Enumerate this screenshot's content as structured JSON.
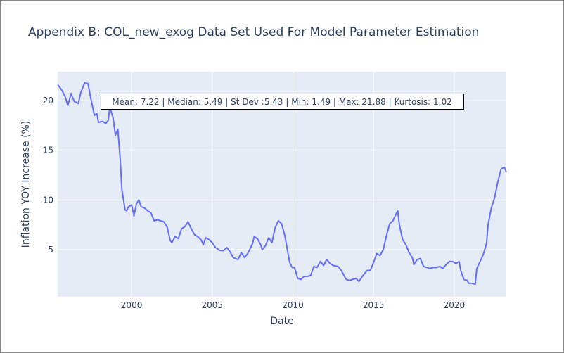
{
  "chart_data": {
    "type": "line",
    "title": "Appendix B: COL_new_exog Data Set Used For Model Parameter Estimation",
    "x_label": "Date",
    "y_label": "Inflation YOY Increase (%)",
    "annotation": "Mean: 7.22 | Median: 5.49 | St Dev :5.43 | Min: 1.49 | Max: 21.88 | Kurtosis: 1.02",
    "color": "#636efa",
    "grid": true,
    "xlim": [
      1995.42,
      2023.23
    ],
    "xticks": [
      2000,
      2005,
      2010,
      2015,
      2020
    ],
    "ylim": [
      0.25,
      22.9
    ],
    "yticks": [
      5,
      10,
      15,
      20
    ],
    "x": [
      1995.42,
      1995.7,
      1995.9,
      1996.05,
      1996.25,
      1996.45,
      1996.7,
      1996.85,
      1997.1,
      1997.3,
      1997.5,
      1997.7,
      1997.85,
      1997.95,
      1998.2,
      1998.4,
      1998.55,
      1998.65,
      1998.85,
      1999.0,
      1999.15,
      1999.3,
      1999.4,
      1999.6,
      1999.7,
      1999.8,
      2000.0,
      2000.15,
      2000.3,
      2000.45,
      2000.6,
      2000.8,
      2001.0,
      2001.2,
      2001.4,
      2001.6,
      2001.8,
      2002.0,
      2002.2,
      2002.4,
      2002.5,
      2002.7,
      2002.9,
      2003.1,
      2003.3,
      2003.5,
      2003.7,
      2003.9,
      2004.1,
      2004.3,
      2004.45,
      2004.6,
      2004.8,
      2005.0,
      2005.2,
      2005.5,
      2005.7,
      2005.9,
      2006.1,
      2006.3,
      2006.6,
      2006.8,
      2007.0,
      2007.2,
      2007.5,
      2007.6,
      2007.8,
      2008.0,
      2008.1,
      2008.3,
      2008.5,
      2008.7,
      2008.9,
      2009.1,
      2009.3,
      2009.5,
      2009.6,
      2009.8,
      2009.95,
      2010.1,
      2010.3,
      2010.5,
      2010.7,
      2010.9,
      2011.1,
      2011.3,
      2011.5,
      2011.7,
      2011.9,
      2012.1,
      2012.3,
      2012.5,
      2012.8,
      2013.0,
      2013.3,
      2013.5,
      2013.7,
      2013.9,
      2014.1,
      2014.3,
      2014.6,
      2014.8,
      2015.0,
      2015.2,
      2015.4,
      2015.6,
      2015.8,
      2016.0,
      2016.2,
      2016.4,
      2016.5,
      2016.6,
      2016.8,
      2017.0,
      2017.2,
      2017.4,
      2017.5,
      2017.7,
      2017.9,
      2018.1,
      2018.3,
      2018.5,
      2018.7,
      2018.9,
      2019.1,
      2019.3,
      2019.5,
      2019.7,
      2019.9,
      2020.1,
      2020.3,
      2020.4,
      2020.6,
      2020.8,
      2020.9,
      2021.1,
      2021.3,
      2021.4,
      2021.6,
      2021.8,
      2022.0,
      2022.1,
      2022.3,
      2022.5,
      2022.7,
      2022.9,
      2023.1,
      2023.23
    ],
    "values": [
      21.6,
      21.0,
      20.3,
      19.5,
      20.7,
      19.9,
      19.7,
      20.8,
      21.8,
      21.7,
      20.0,
      18.5,
      18.7,
      17.8,
      17.9,
      17.7,
      18.0,
      19.3,
      18.3,
      16.5,
      17.1,
      14.0,
      11.0,
      9.0,
      8.9,
      9.3,
      9.5,
      8.4,
      9.6,
      10.0,
      9.3,
      9.2,
      8.9,
      8.7,
      7.9,
      8.0,
      7.9,
      7.8,
      7.3,
      5.9,
      5.7,
      6.3,
      6.1,
      7.1,
      7.3,
      7.8,
      7.1,
      6.5,
      6.3,
      6.0,
      5.5,
      6.2,
      6.0,
      5.7,
      5.2,
      4.9,
      4.9,
      5.2,
      4.8,
      4.2,
      4.0,
      4.7,
      4.2,
      4.6,
      5.6,
      6.3,
      6.1,
      5.5,
      5.0,
      5.4,
      6.2,
      5.7,
      7.2,
      7.9,
      7.6,
      6.4,
      5.5,
      3.7,
      3.2,
      3.2,
      2.1,
      2.0,
      2.3,
      2.3,
      2.4,
      3.3,
      3.2,
      3.8,
      3.4,
      4.0,
      3.6,
      3.4,
      3.3,
      2.9,
      2.0,
      1.9,
      2.0,
      2.1,
      1.8,
      2.3,
      2.9,
      2.9,
      3.7,
      4.6,
      4.4,
      5.0,
      6.4,
      7.6,
      7.9,
      8.6,
      8.9,
      7.5,
      6.0,
      5.5,
      4.7,
      4.2,
      3.5,
      4.0,
      4.1,
      3.3,
      3.2,
      3.1,
      3.2,
      3.2,
      3.3,
      3.1,
      3.5,
      3.8,
      3.8,
      3.6,
      3.8,
      2.9,
      2.0,
      1.9,
      1.6,
      1.6,
      1.5,
      3.1,
      3.8,
      4.5,
      5.6,
      7.5,
      9.2,
      10.2,
      11.8,
      13.1,
      13.3,
      12.8
    ]
  }
}
